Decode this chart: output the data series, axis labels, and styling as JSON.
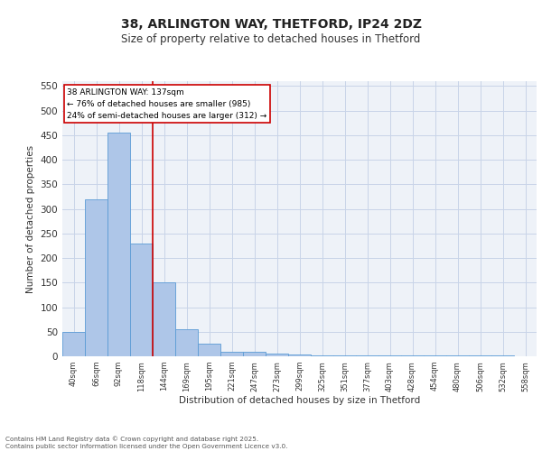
{
  "title1": "38, ARLINGTON WAY, THETFORD, IP24 2DZ",
  "title2": "Size of property relative to detached houses in Thetford",
  "xlabel": "Distribution of detached houses by size in Thetford",
  "ylabel": "Number of detached properties",
  "bin_labels": [
    "40sqm",
    "66sqm",
    "92sqm",
    "118sqm",
    "144sqm",
    "169sqm",
    "195sqm",
    "221sqm",
    "247sqm",
    "273sqm",
    "299sqm",
    "325sqm",
    "351sqm",
    "377sqm",
    "403sqm",
    "428sqm",
    "454sqm",
    "480sqm",
    "506sqm",
    "532sqm",
    "558sqm"
  ],
  "bar_values": [
    50,
    320,
    455,
    230,
    150,
    55,
    25,
    10,
    10,
    5,
    3,
    2,
    2,
    1,
    1,
    1,
    1,
    1,
    1,
    2,
    0
  ],
  "bar_color": "#aec6e8",
  "bar_edge_color": "#5b9bd5",
  "grid_color": "#c8d4e8",
  "bg_color": "#eef2f8",
  "red_line_x": 4,
  "red_line_color": "#cc0000",
  "annotation_title": "38 ARLINGTON WAY: 137sqm",
  "annotation_line1": "← 76% of detached houses are smaller (985)",
  "annotation_line2": "24% of semi-detached houses are larger (312) →",
  "annotation_box_color": "#ffffff",
  "annotation_border_color": "#cc0000",
  "ylim": [
    0,
    560
  ],
  "yticks": [
    0,
    50,
    100,
    150,
    200,
    250,
    300,
    350,
    400,
    450,
    500,
    550
  ],
  "footer1": "Contains HM Land Registry data © Crown copyright and database right 2025.",
  "footer2": "Contains public sector information licensed under the Open Government Licence v3.0."
}
